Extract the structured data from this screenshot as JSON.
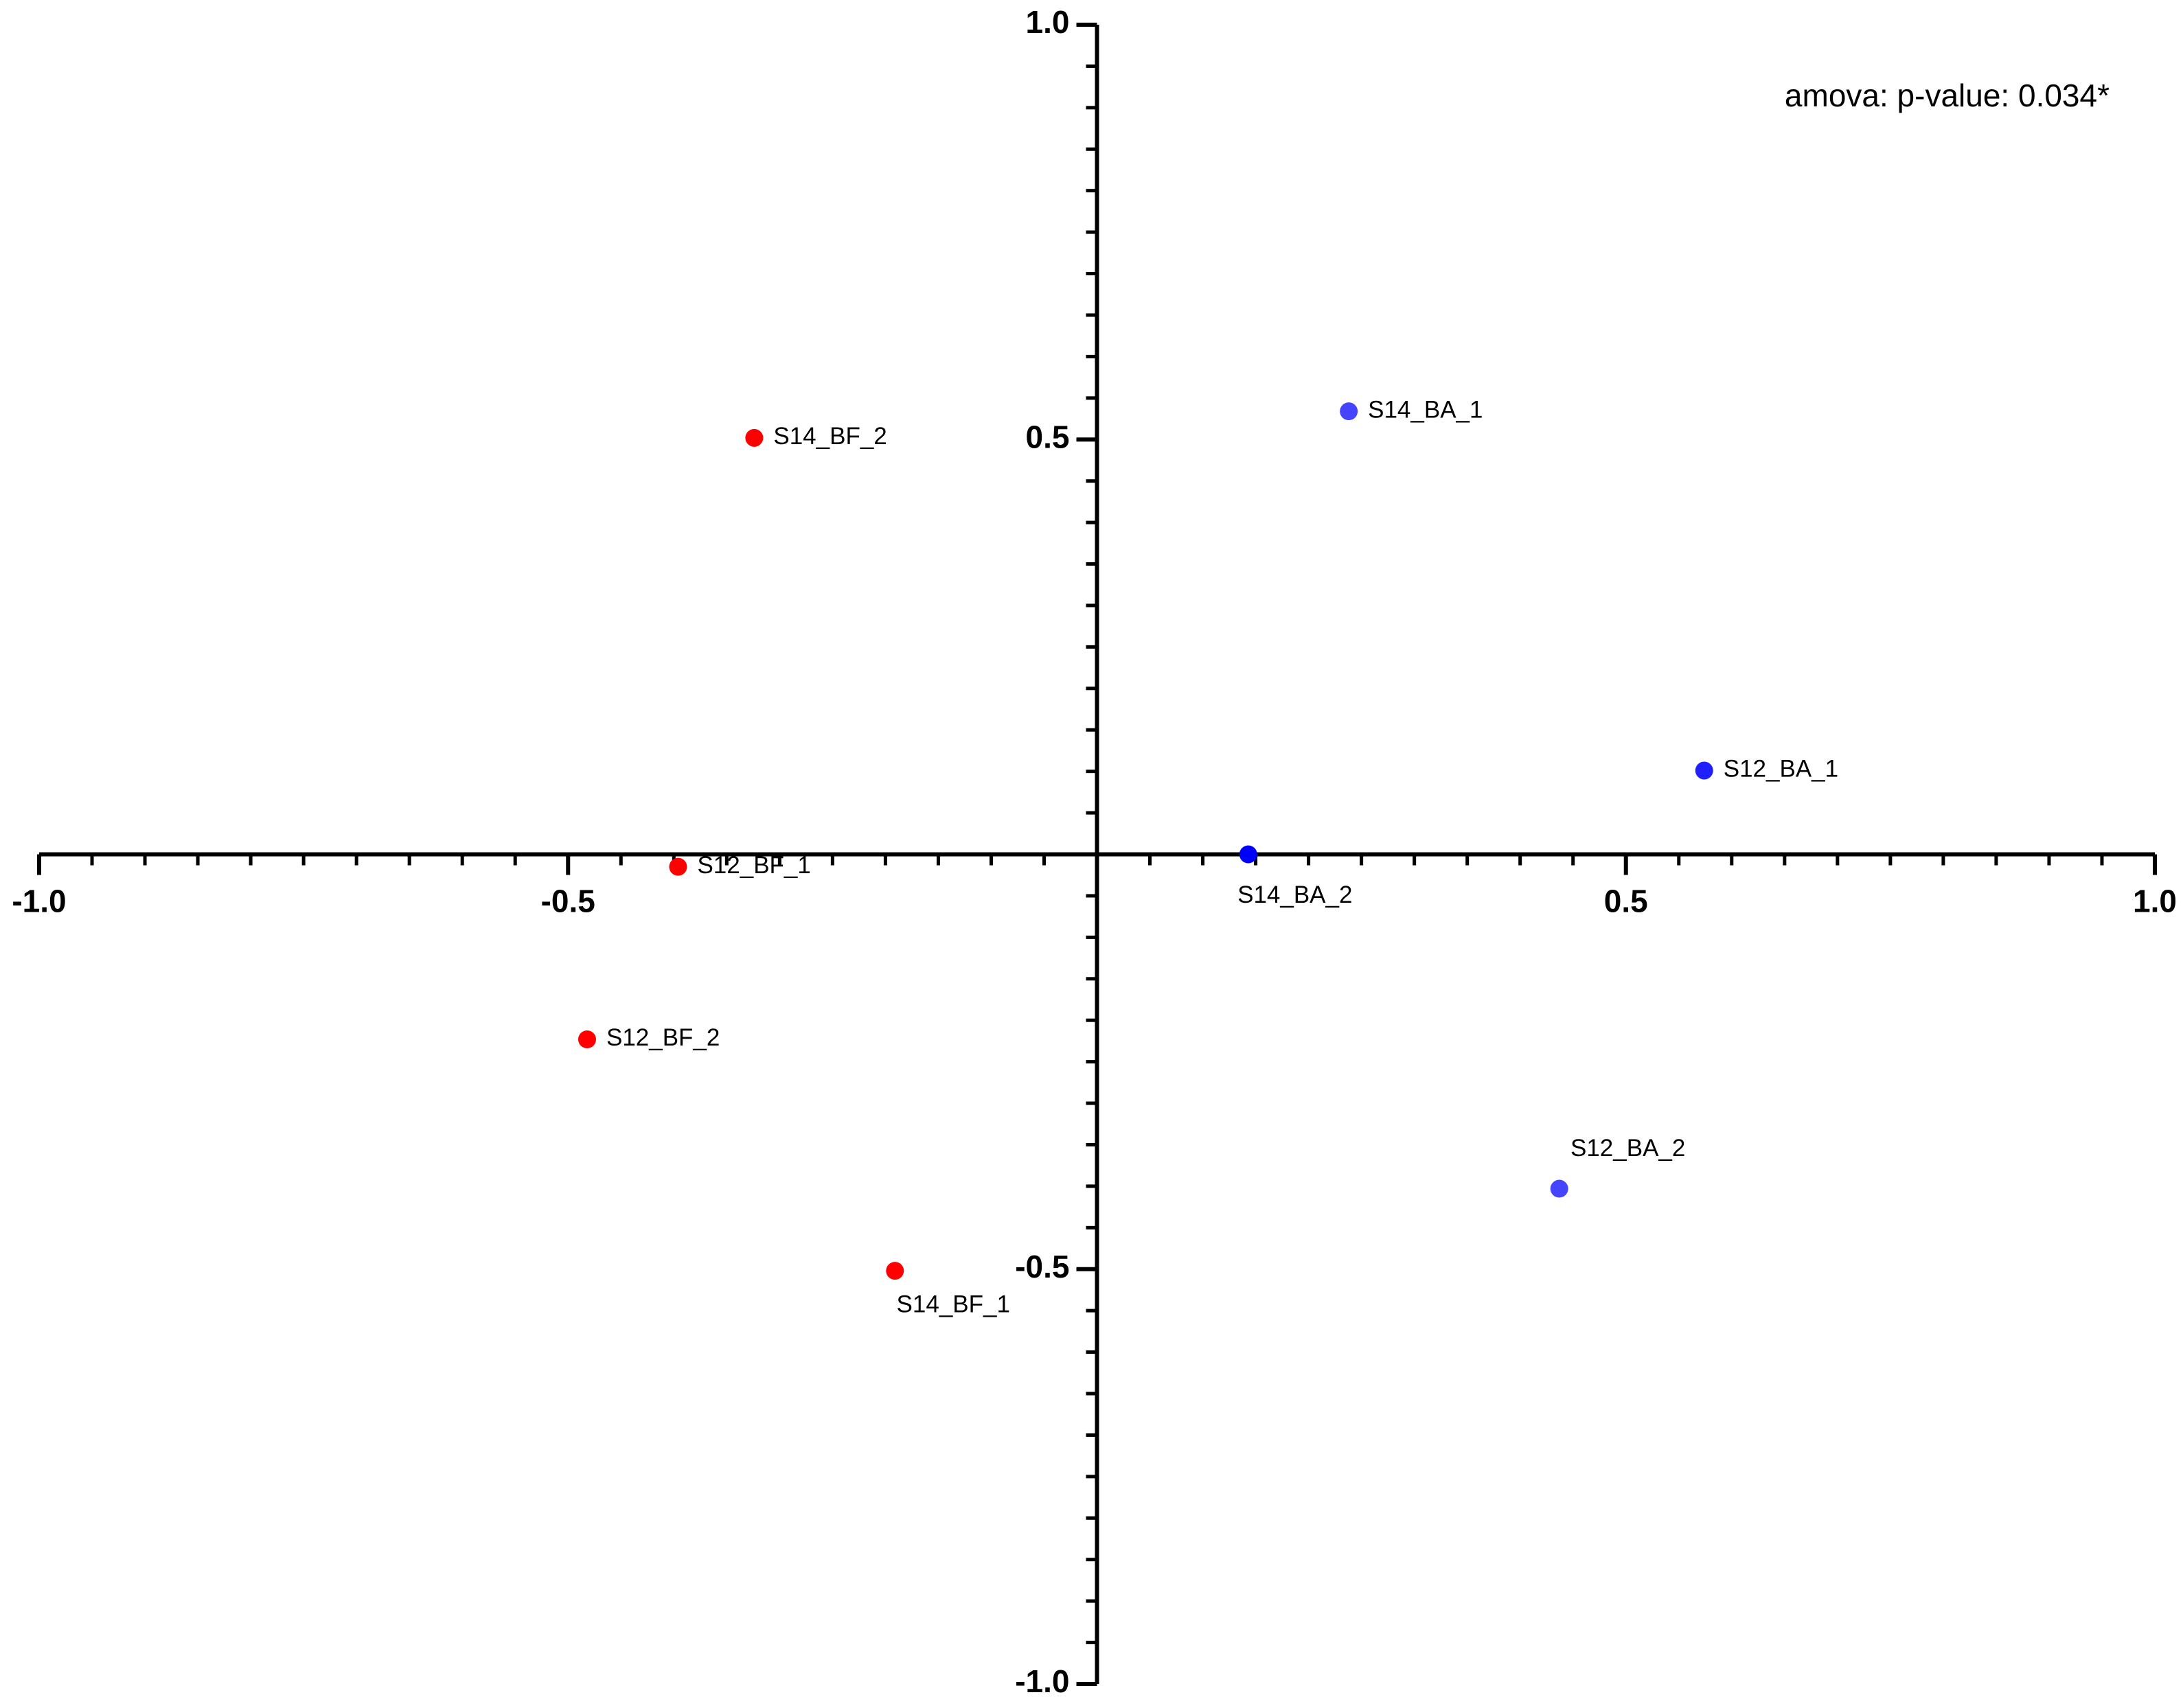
{
  "chart_data": {
    "type": "scatter",
    "annotation": "amova: p-value: 0.034*",
    "labels": [
      "S14_BF_2",
      "S12_BF_1",
      "S12_BF_2",
      "S14_BF_1",
      "S14_BA_1",
      "S12_BA_1",
      "S14_BA_2",
      "S12_BA_2"
    ],
    "x": [
      -0.324,
      -0.396,
      -0.482,
      -0.191,
      0.238,
      0.574,
      0.143,
      0.437
    ],
    "y": [
      0.502,
      -0.015,
      -0.223,
      -0.502,
      0.534,
      0.101,
      0.0,
      -0.403
    ],
    "colors": [
      "#ff0000",
      "#ff0000",
      "#ff0000",
      "#ff0000",
      "#4545ff",
      "#1f1fff",
      "#0000ff",
      "#4545ff"
    ],
    "xlim": [
      -1,
      1
    ],
    "ylim": [
      -1,
      1
    ],
    "xticks": [
      {
        "value": -1,
        "label": "-1.0"
      },
      -0.5,
      0.5,
      {
        "value": 1,
        "label": "1.0"
      }
    ],
    "yticks": [
      {
        "value": 1,
        "label": "1.0"
      },
      0.5,
      -0.5,
      {
        "value": -1,
        "label": "-1.0"
      }
    ],
    "xminorticks": [
      -0.95,
      -0.9,
      -0.85,
      -0.8,
      -0.75,
      -0.7,
      -0.65,
      -0.6,
      -0.55,
      -0.45,
      -0.4,
      -0.35,
      -0.3,
      -0.25,
      -0.2,
      -0.15,
      -0.1,
      -0.05,
      0.05,
      0.1,
      0.15,
      0.2,
      0.25,
      0.3,
      0.35,
      0.4,
      0.45,
      0.55,
      0.6,
      0.65,
      0.7,
      0.75,
      0.8,
      0.85,
      0.9,
      0.95
    ],
    "yminorticks": [
      -0.95,
      -0.9,
      -0.85,
      -0.8,
      -0.75,
      -0.7,
      -0.65,
      -0.6,
      -0.55,
      -0.45,
      -0.4,
      -0.35,
      -0.3,
      -0.25,
      -0.2,
      -0.15,
      -0.1,
      -0.05,
      0.05,
      0.1,
      0.15,
      0.2,
      0.25,
      0.3,
      0.35,
      0.4,
      0.45,
      0.55,
      0.6,
      0.65,
      0.7,
      0.75,
      0.8,
      0.85,
      0.9,
      0.95
    ]
  }
}
